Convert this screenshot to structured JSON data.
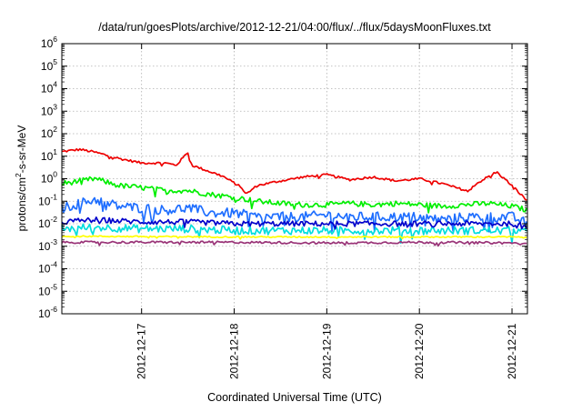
{
  "chart_data": {
    "type": "line",
    "title": "/data/run/goesPlots/archive/2012-12-21/04:00/flux/../flux/5daysMoonFluxes.txt",
    "xlabel": "Coordinated Universal Time (UTC)",
    "ylabel_parts": [
      "protons/cm",
      "2",
      "-s-sr-MeV"
    ],
    "yscale": "log",
    "ylim": [
      "1e-6",
      "1e6"
    ],
    "y_ticks": [
      {
        "base": "10",
        "exp": "-6"
      },
      {
        "base": "10",
        "exp": "-5"
      },
      {
        "base": "10",
        "exp": "-4"
      },
      {
        "base": "10",
        "exp": "-3"
      },
      {
        "base": "10",
        "exp": "-2"
      },
      {
        "base": "10",
        "exp": "-1"
      },
      {
        "base": "10",
        "exp": "0"
      },
      {
        "base": "10",
        "exp": "1"
      },
      {
        "base": "10",
        "exp": "2"
      },
      {
        "base": "10",
        "exp": "3"
      },
      {
        "base": "10",
        "exp": "4"
      },
      {
        "base": "10",
        "exp": "5"
      },
      {
        "base": "10",
        "exp": "6"
      }
    ],
    "x_range": [
      "2012-12-16T03:20",
      "2012-12-21T04:00"
    ],
    "x_ticks": [
      "2012-12-17",
      "2012-12-18",
      "2012-12-19",
      "2012-12-20",
      "2012-12-21"
    ],
    "grid": true,
    "legend": "none",
    "series": [
      {
        "color": "#ee0000",
        "x": [
          "2012-12-16T03:20",
          "2012-12-16T08:00",
          "2012-12-16T12:00",
          "2012-12-16T18:00",
          "2012-12-17T00:00",
          "2012-12-17T06:00",
          "2012-12-17T09:00",
          "2012-12-17T12:00",
          "2012-12-17T13:00",
          "2012-12-17T15:00",
          "2012-12-17T21:00",
          "2012-12-18T02:00",
          "2012-12-18T03:00",
          "2012-12-18T06:00",
          "2012-12-18T12:00",
          "2012-12-18T18:00",
          "2012-12-19T00:00",
          "2012-12-19T06:00",
          "2012-12-19T12:00",
          "2012-12-19T18:00",
          "2012-12-20T00:00",
          "2012-12-20T06:00",
          "2012-12-20T12:00",
          "2012-12-20T16:00",
          "2012-12-20T20:00",
          "2012-12-21T00:00",
          "2012-12-21T04:00"
        ],
        "y": [
          16,
          20,
          15,
          8,
          5,
          5,
          4,
          15,
          4,
          3,
          1.3,
          0.4,
          0.2,
          0.5,
          0.8,
          1.2,
          1.5,
          0.9,
          1.2,
          0.8,
          1.0,
          0.6,
          0.3,
          0.8,
          2.0,
          0.5,
          0.1
        ]
      },
      {
        "color": "#00ee00",
        "x": [
          "2012-12-16T03:20",
          "2012-12-16T08:00",
          "2012-12-16T12:00",
          "2012-12-16T18:00",
          "2012-12-17T00:00",
          "2012-12-17T06:00",
          "2012-12-17T12:00",
          "2012-12-17T18:00",
          "2012-12-18T00:00",
          "2012-12-18T06:00",
          "2012-12-18T12:00",
          "2012-12-18T18:00",
          "2012-12-19T00:00",
          "2012-12-19T06:00",
          "2012-12-19T12:00",
          "2012-12-19T18:00",
          "2012-12-20T00:00",
          "2012-12-20T06:00",
          "2012-12-20T12:00",
          "2012-12-20T18:00",
          "2012-12-21T00:00",
          "2012-12-21T04:00"
        ],
        "y": [
          0.6,
          0.8,
          1.0,
          0.5,
          0.4,
          0.3,
          0.3,
          0.2,
          0.15,
          0.1,
          0.08,
          0.07,
          0.07,
          0.08,
          0.07,
          0.08,
          0.07,
          0.06,
          0.07,
          0.08,
          0.06,
          0.04
        ]
      },
      {
        "color": "#1e6eff",
        "x": [
          "2012-12-16T03:20",
          "2012-12-16T08:00",
          "2012-12-16T12:00",
          "2012-12-16T18:00",
          "2012-12-17T00:00",
          "2012-12-17T06:00",
          "2012-12-17T12:00",
          "2012-12-17T18:00",
          "2012-12-18T00:00",
          "2012-12-18T06:00",
          "2012-12-18T12:00",
          "2012-12-18T18:00",
          "2012-12-19T00:00",
          "2012-12-19T06:00",
          "2012-12-19T12:00",
          "2012-12-19T18:00",
          "2012-12-20T00:00",
          "2012-12-20T06:00",
          "2012-12-20T12:00",
          "2012-12-20T18:00",
          "2012-12-21T00:00",
          "2012-12-21T04:00"
        ],
        "y": [
          0.05,
          0.08,
          0.12,
          0.06,
          0.05,
          0.04,
          0.05,
          0.03,
          0.03,
          0.02,
          0.02,
          0.02,
          0.025,
          0.02,
          0.02,
          0.02,
          0.02,
          0.015,
          0.02,
          0.02,
          0.02,
          0.01
        ]
      },
      {
        "color": "#00dddd",
        "x": [
          "2012-12-16T03:20",
          "2012-12-16T12:00",
          "2012-12-17T00:00",
          "2012-12-17T12:00",
          "2012-12-18T00:00",
          "2012-12-18T12:00",
          "2012-12-19T00:00",
          "2012-12-19T12:00",
          "2012-12-20T00:00",
          "2012-12-20T12:00",
          "2012-12-21T00:00",
          "2012-12-21T04:00"
        ],
        "y": [
          0.006,
          0.007,
          0.006,
          0.006,
          0.005,
          0.005,
          0.005,
          0.005,
          0.005,
          0.005,
          0.005,
          0.004
        ]
      },
      {
        "color": "#0000cc",
        "x": [
          "2012-12-16T03:20",
          "2012-12-16T12:00",
          "2012-12-17T00:00",
          "2012-12-17T12:00",
          "2012-12-18T00:00",
          "2012-12-18T12:00",
          "2012-12-19T00:00",
          "2012-12-19T12:00",
          "2012-12-20T00:00",
          "2012-12-20T12:00",
          "2012-12-21T00:00",
          "2012-12-21T04:00"
        ],
        "y": [
          0.012,
          0.015,
          0.012,
          0.012,
          0.01,
          0.01,
          0.01,
          0.01,
          0.01,
          0.01,
          0.01,
          0.008
        ]
      },
      {
        "color": "#ffff00",
        "x": [
          "2012-12-16T03:20",
          "2012-12-17T00:00",
          "2012-12-18T00:00",
          "2012-12-19T00:00",
          "2012-12-20T00:00",
          "2012-12-21T00:00",
          "2012-12-21T04:00"
        ],
        "y": [
          0.0028,
          0.0027,
          0.0026,
          0.0026,
          0.0026,
          0.0026,
          0.0024
        ]
      },
      {
        "color": "#993377",
        "x": [
          "2012-12-16T03:20",
          "2012-12-17T00:00",
          "2012-12-18T00:00",
          "2012-12-19T00:00",
          "2012-12-20T00:00",
          "2012-12-21T00:00",
          "2012-12-21T04:00"
        ],
        "y": [
          0.0015,
          0.0015,
          0.0015,
          0.0014,
          0.0015,
          0.0014,
          0.0012
        ]
      }
    ]
  }
}
